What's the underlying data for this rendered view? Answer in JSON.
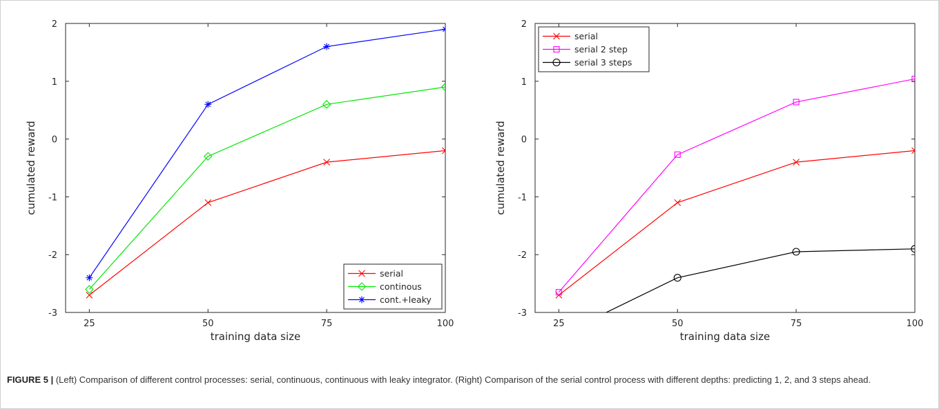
{
  "caption": {
    "label": "FIGURE 5 |",
    "text": " (Left) Comparison of different control processes: serial, continuous, continuous with leaky integrator. (Right) Comparison of the serial control process with different depths: predicting 1, 2, and 3 steps ahead."
  },
  "chart_data": [
    {
      "type": "line",
      "xlabel": "training data size",
      "ylabel": "cumulated reward",
      "x": [
        25,
        50,
        75,
        100
      ],
      "xlim": [
        20,
        100
      ],
      "ylim": [
        -3,
        2
      ],
      "xticks": [
        "25",
        "50",
        "75",
        "100"
      ],
      "yticks": [
        "-3",
        "-2",
        "-1",
        "0",
        "1",
        "2"
      ],
      "grid": false,
      "legend_position": "bottom-right",
      "series": [
        {
          "name": "serial",
          "values": [
            -2.7,
            -1.1,
            -0.4,
            -0.2
          ],
          "color": "#ff0000",
          "marker": "x"
        },
        {
          "name": "continous",
          "values": [
            -2.6,
            -0.3,
            0.6,
            0.9
          ],
          "color": "#00e600",
          "marker": "diamond"
        },
        {
          "name": "cont.+leaky",
          "values": [
            -2.4,
            0.6,
            1.6,
            1.9
          ],
          "color": "#0000ff",
          "marker": "asterisk"
        }
      ]
    },
    {
      "type": "line",
      "xlabel": "training data size",
      "ylabel": "cumulated reward",
      "x": [
        25,
        50,
        75,
        100
      ],
      "xlim": [
        20,
        100
      ],
      "ylim": [
        -3,
        2
      ],
      "xticks": [
        "25",
        "50",
        "75",
        "100"
      ],
      "yticks": [
        "-3",
        "-2",
        "-1",
        "0",
        "1",
        "2"
      ],
      "grid": false,
      "legend_position": "top-left",
      "series": [
        {
          "name": "serial",
          "values": [
            -2.7,
            -1.1,
            -0.4,
            -0.2
          ],
          "color": "#ff0000",
          "marker": "x"
        },
        {
          "name": "serial 2 step",
          "values": [
            -2.65,
            -0.27,
            0.64,
            1.04
          ],
          "color": "#ff00ff",
          "marker": "square"
        },
        {
          "name": "serial 3 steps",
          "values": [
            -3.4,
            -2.4,
            -1.95,
            -1.9
          ],
          "color": "#000000",
          "marker": "circle"
        }
      ]
    }
  ]
}
